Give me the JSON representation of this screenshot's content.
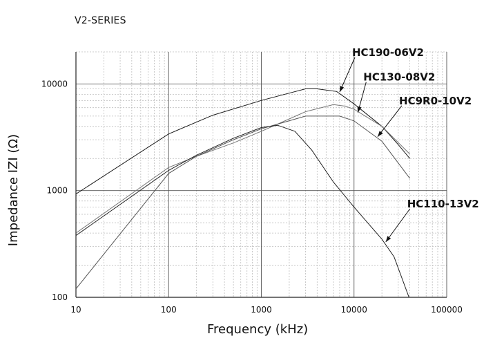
{
  "chart_data": {
    "type": "line",
    "title": "",
    "subtitle": "V2-SERIES",
    "xlabel": "Frequency (kHz)",
    "ylabel": "Impedance IZI (Ω)",
    "x_scale": "log",
    "y_scale": "log",
    "xlim": [
      10,
      100000
    ],
    "ylim": [
      100,
      20000
    ],
    "grid": true,
    "x_ticks": [
      "10",
      "100",
      "1000",
      "10000",
      "100000"
    ],
    "y_ticks": [
      "100",
      "1000",
      "10000"
    ],
    "series": [
      {
        "name": "HC190-06V2",
        "color": "#1a1a1a",
        "points": [
          [
            10,
            930
          ],
          [
            100,
            3400
          ],
          [
            300,
            5100
          ],
          [
            1000,
            7000
          ],
          [
            2000,
            8200
          ],
          [
            3000,
            9000
          ],
          [
            4000,
            9000
          ],
          [
            6500,
            8500
          ],
          [
            10000,
            6500
          ],
          [
            20000,
            4000
          ],
          [
            30000,
            2700
          ],
          [
            40000,
            2000
          ]
        ]
      },
      {
        "name": "HC130-08V2",
        "color": "#777777",
        "points": [
          [
            10,
            400
          ],
          [
            100,
            1650
          ],
          [
            200,
            2100
          ],
          [
            500,
            2800
          ],
          [
            1000,
            3600
          ],
          [
            3000,
            5500
          ],
          [
            6000,
            6400
          ],
          [
            8000,
            6200
          ],
          [
            10000,
            5800
          ],
          [
            20000,
            4000
          ],
          [
            40000,
            2200
          ]
        ]
      },
      {
        "name": "HC9R0-10V2",
        "color": "#555555",
        "points": [
          [
            10,
            120
          ],
          [
            100,
            1450
          ],
          [
            200,
            2100
          ],
          [
            500,
            3000
          ],
          [
            1000,
            3800
          ],
          [
            3000,
            5000
          ],
          [
            7000,
            5000
          ],
          [
            10000,
            4500
          ],
          [
            20000,
            2900
          ],
          [
            40000,
            1300
          ]
        ]
      },
      {
        "name": "HC110-13V2",
        "color": "#222222",
        "points": [
          [
            10,
            380
          ],
          [
            100,
            1550
          ],
          [
            200,
            2150
          ],
          [
            500,
            3100
          ],
          [
            1000,
            3900
          ],
          [
            1500,
            4100
          ],
          [
            2300,
            3600
          ],
          [
            3500,
            2400
          ],
          [
            6000,
            1200
          ],
          [
            10000,
            700
          ],
          [
            20000,
            350
          ],
          [
            27000,
            240
          ],
          [
            40000,
            95
          ]
        ]
      }
    ],
    "annotations": [
      {
        "text": "HC190-06V2",
        "series": 0,
        "target": [
          7000,
          8400
        ]
      },
      {
        "text": "HC130-08V2",
        "series": 1,
        "target": [
          11000,
          5400
        ]
      },
      {
        "text": "HC9R0-10V2",
        "series": 2,
        "target": [
          18000,
          3200
        ]
      },
      {
        "text": "HC110-13V2",
        "series": 3,
        "target": [
          22000,
          330
        ]
      }
    ]
  }
}
